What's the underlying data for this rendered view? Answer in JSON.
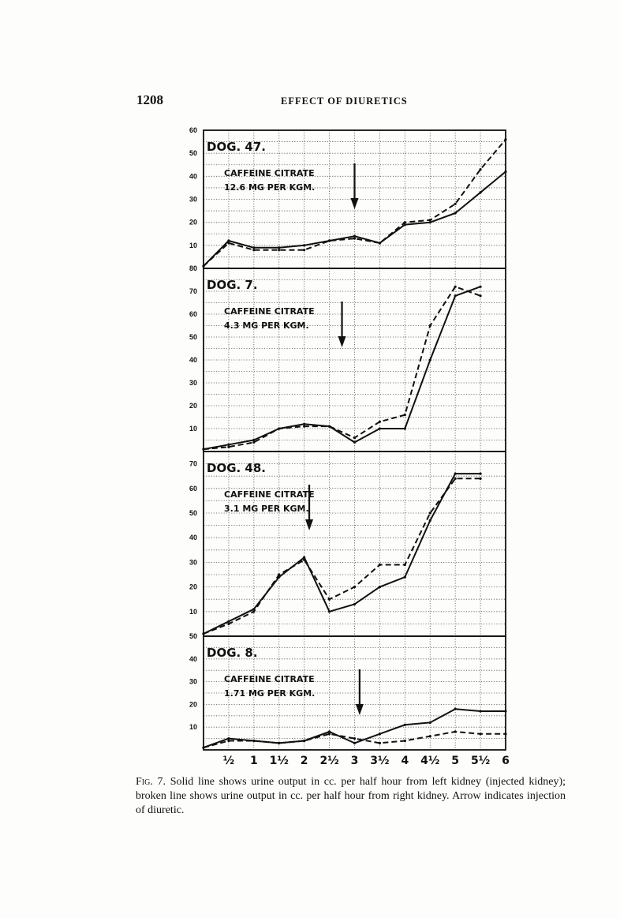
{
  "header": {
    "page_number": "1208",
    "running_title": "EFFECT OF DIURETICS"
  },
  "caption": {
    "label": "Fig. 7.",
    "text": "Solid line shows urine output in cc. per half hour from left kidney (injected kidney); broken line shows urine output in cc. per half hour from right kidney. Arrow indicates injection of diuretic."
  },
  "x_tick_labels": [
    "½",
    "1",
    "1½",
    "2",
    "2½",
    "3",
    "3½",
    "4",
    "4½",
    "5",
    "5½",
    "6"
  ],
  "colors": {
    "ink": "#111111",
    "grid": "#555555"
  },
  "chart_data": [
    {
      "type": "line",
      "title": "DOG. 47.",
      "annotation": [
        "CAFFEINE CITRATE",
        "12.6 MG PER KGM."
      ],
      "arrow_at": 3,
      "ylim": [
        0,
        60
      ],
      "y_ticks": [
        10,
        20,
        30,
        40,
        50,
        60
      ],
      "x": [
        0,
        0.5,
        1,
        1.5,
        2,
        2.5,
        3,
        3.5,
        4,
        4.5,
        5,
        5.5,
        6
      ],
      "series": [
        {
          "style": "solid",
          "values": [
            1,
            12,
            9,
            9,
            10,
            12,
            14,
            11,
            19,
            20,
            24,
            33,
            42
          ]
        },
        {
          "style": "dashed",
          "values": [
            1,
            11,
            8,
            8,
            8,
            12,
            13,
            11,
            20,
            21,
            28,
            43,
            56
          ]
        }
      ]
    },
    {
      "type": "line",
      "title": "DOG. 7.",
      "annotation": [
        "CAFFEINE CITRATE",
        "4.3 MG PER KGM."
      ],
      "arrow_at": 2.75,
      "ylim": [
        0,
        80
      ],
      "y_ticks": [
        10,
        20,
        30,
        40,
        50,
        60,
        70,
        80
      ],
      "x": [
        0,
        0.5,
        1,
        1.5,
        2,
        2.5,
        3,
        3.5,
        4,
        4.5,
        5,
        5.5
      ],
      "series": [
        {
          "style": "solid",
          "values": [
            1,
            3,
            5,
            10,
            12,
            11,
            4,
            10,
            10,
            40,
            68,
            72
          ]
        },
        {
          "style": "dashed",
          "values": [
            1,
            2,
            4,
            10,
            11,
            11,
            6,
            13,
            16,
            55,
            72,
            68
          ]
        }
      ]
    },
    {
      "type": "line",
      "title": "DOG. 48.",
      "annotation": [
        "CAFFEINE CITRATE",
        "3.1 MG PER KGM."
      ],
      "arrow_at": 2.1,
      "ylim": [
        0,
        75
      ],
      "y_ticks": [
        10,
        20,
        30,
        40,
        50,
        60,
        70
      ],
      "x": [
        0,
        0.5,
        1,
        1.5,
        2,
        2.5,
        3,
        3.5,
        4,
        4.5,
        5,
        5.5
      ],
      "series": [
        {
          "style": "solid",
          "values": [
            1,
            6,
            11,
            24,
            32,
            10,
            13,
            20,
            24,
            47,
            66,
            66
          ]
        },
        {
          "style": "dashed",
          "values": [
            1,
            5,
            10,
            25,
            31,
            15,
            20,
            29,
            29,
            50,
            64,
            64
          ]
        }
      ]
    },
    {
      "type": "line",
      "title": "DOG. 8.",
      "annotation": [
        "CAFFEINE CITRATE",
        "1.71 MG PER KGM."
      ],
      "arrow_at": 3.1,
      "ylim": [
        0,
        50
      ],
      "y_ticks": [
        10,
        20,
        30,
        40,
        50
      ],
      "x": [
        0,
        0.5,
        1,
        1.5,
        2,
        2.5,
        3,
        3.5,
        4,
        4.5,
        5,
        5.5,
        6
      ],
      "series": [
        {
          "style": "solid",
          "values": [
            1,
            5,
            4,
            3,
            4,
            8,
            3,
            7,
            11,
            12,
            18,
            17,
            17
          ]
        },
        {
          "style": "dashed",
          "values": [
            1,
            4,
            4,
            3,
            4,
            7,
            5,
            3,
            4,
            6,
            8,
            7,
            7
          ]
        }
      ]
    }
  ]
}
